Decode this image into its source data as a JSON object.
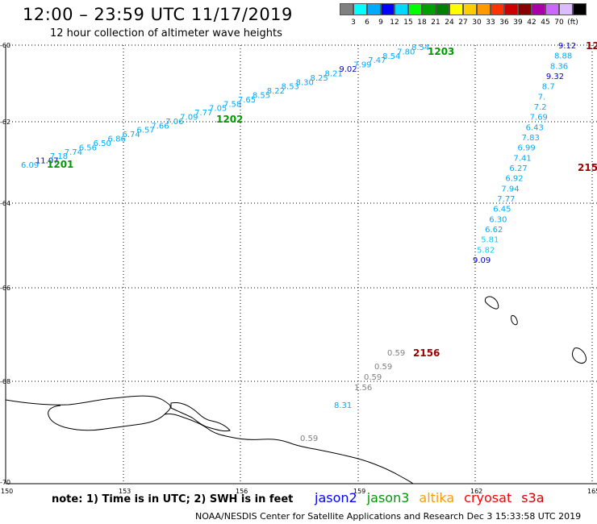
{
  "header": {
    "title": "12:00 – 23:59 UTC 11/17/2019",
    "subtitle": "12 hour collection of altimeter wave heights"
  },
  "legend": {
    "colors": [
      "#808080",
      "#00ffff",
      "#00aaff",
      "#0000ff",
      "#00d8ff",
      "#00ff00",
      "#00a000",
      "#008000",
      "#ffff00",
      "#ffcc00",
      "#ff9900",
      "#ff3300",
      "#cc0000",
      "#880000",
      "#aa00aa",
      "#cc66ff",
      "#ddbbff",
      "#000000"
    ],
    "labels": [
      "3",
      "6",
      "9",
      "12",
      "15",
      "18",
      "21",
      "24",
      "27",
      "30",
      "33",
      "36",
      "39",
      "42",
      "45",
      "70",
      "(ft)"
    ]
  },
  "map": {
    "lat_ticks": [
      "-60",
      "-62",
      "-64",
      "-66",
      "-68",
      "-70"
    ],
    "lon_ticks": [
      "150",
      "153",
      "156",
      "159",
      "162",
      "165"
    ]
  },
  "passes": [
    {
      "label": "1201",
      "color": "#009900"
    },
    {
      "label": "1202",
      "color": "#009900"
    },
    {
      "label": "1203",
      "color": "#009900"
    },
    {
      "label": "2156",
      "color": "#990000"
    },
    {
      "label": "215",
      "color": "#990000"
    },
    {
      "label": "12",
      "color": "#990000"
    }
  ],
  "readings": {
    "track_1": [
      "6.09",
      "11.07",
      "7.18",
      "7.74",
      "6.56",
      "6.50",
      "6.86",
      "6.74",
      "6.57",
      "7.66",
      "7.06",
      "7.09",
      "7.77",
      "7.05",
      "7.58",
      "7.65",
      "8.55",
      "8.22",
      "8.53",
      "8.30",
      "8.25",
      "8.21",
      "9.02",
      "7.99",
      "7.47",
      "8.54",
      "7.80",
      "8.54"
    ],
    "track_2": [
      "9.12",
      "8.88",
      "8.36",
      "9.32",
      "8.7",
      "7.",
      "7.2",
      "7.69",
      "6.43",
      "7.83",
      "6.99",
      "7.41",
      "6.27",
      "6.92",
      "7.94",
      "7.77",
      "6.45",
      "6.30",
      "6.62",
      "5.81",
      "5.82",
      "9.09"
    ],
    "track_3": [
      "0.59",
      "0.59",
      "0.59",
      "1.56",
      "8.31",
      "0.59"
    ]
  },
  "footer": {
    "note": "note: 1) Time is in UTC; 2) SWH is in feet",
    "satellites": [
      {
        "name": "jason2",
        "color": "#0000ff"
      },
      {
        "name": "jason3",
        "color": "#009900"
      },
      {
        "name": "altika",
        "color": "#ff9900"
      },
      {
        "name": "cryosat",
        "color": "#ff0000"
      },
      {
        "name": "s3a",
        "color": "#cc0000"
      }
    ],
    "credit": "NOAA/NESDIS Center for Satellite Applications and Research    Dec  3 15:33:58 UTC 2019"
  }
}
